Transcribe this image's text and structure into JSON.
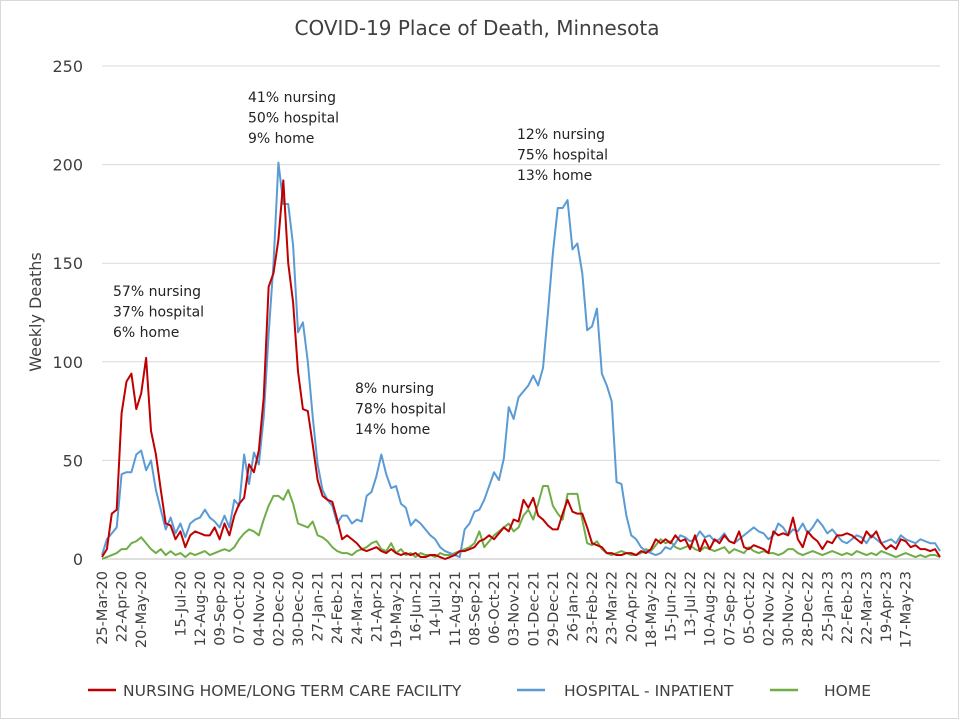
{
  "chart_data": {
    "type": "line",
    "title": "COVID-19 Place of Death, Minnesota",
    "xlabel": "",
    "ylabel": "Weekly Deaths",
    "ylim": [
      0,
      250
    ],
    "yticks": [
      0,
      50,
      100,
      150,
      200,
      250
    ],
    "grid": "horizontal",
    "legend_position": "bottom",
    "x_tick_labels": [
      "25-Mar-20",
      "22-Apr-20",
      "20-May-20",
      "15-Jul-20",
      "12-Aug-20",
      "09-Sep-20",
      "07-Oct-20",
      "04-Nov-20",
      "02-Dec-20",
      "30-Dec-20",
      "27-Jan-21",
      "24-Feb-21",
      "24-Mar-21",
      "21-Apr-21",
      "19-May-21",
      "16-Jun-21",
      "14-Jul-21",
      "11-Aug-21",
      "08-Sep-21",
      "06-Oct-21",
      "03-Nov-21",
      "01-Dec-21",
      "29-Dec-21",
      "26-Jan-22",
      "23-Feb-22",
      "23-Mar-22",
      "20-Apr-22",
      "18-May-22",
      "15-Jun-22",
      "13-Jul-22",
      "10-Aug-22",
      "07-Sep-22",
      "05-Oct-22",
      "02-Nov-22",
      "30-Nov-22",
      "28-Dec-22",
      "25-Jan-23",
      "22-Feb-23",
      "22-Mar-23",
      "19-Apr-23",
      "17-May-23"
    ],
    "x_tick_weeks": [
      0,
      4,
      8,
      16,
      20,
      24,
      28,
      32,
      36,
      40,
      44,
      48,
      52,
      56,
      60,
      64,
      68,
      72,
      76,
      80,
      84,
      88,
      92,
      96,
      100,
      104,
      108,
      112,
      116,
      120,
      124,
      128,
      132,
      136,
      140,
      144,
      148,
      152,
      156,
      160,
      164
    ],
    "series": [
      {
        "name": "NURSING HOME/LONG TERM CARE FACILITY",
        "color": "#c00000",
        "values": [
          1,
          5,
          23,
          25,
          74,
          90,
          94,
          76,
          84,
          102,
          65,
          53,
          35,
          18,
          17,
          10,
          14,
          6,
          12,
          14,
          13,
          12,
          12,
          16,
          10,
          18,
          12,
          22,
          28,
          31,
          48,
          44,
          55,
          82,
          138,
          145,
          162,
          192,
          150,
          130,
          95,
          76,
          75,
          58,
          40,
          32,
          30,
          29,
          20,
          10,
          12,
          10,
          8,
          5,
          4,
          5,
          6,
          4,
          3,
          5,
          3,
          2,
          3,
          2,
          3,
          1,
          1,
          2,
          2,
          1,
          0,
          1,
          2,
          4,
          4,
          5,
          6,
          9,
          10,
          12,
          10,
          13,
          16,
          14,
          20,
          19,
          30,
          26,
          31,
          22,
          20,
          17,
          15,
          15,
          23,
          30,
          24,
          23,
          23,
          16,
          8,
          7,
          6,
          3,
          3,
          2,
          2,
          3,
          3,
          2,
          4,
          3,
          5,
          10,
          8,
          10,
          8,
          12,
          9,
          10,
          5,
          12,
          4,
          10,
          5,
          10,
          8,
          12,
          9,
          8,
          14,
          6,
          5,
          7,
          6,
          5,
          3,
          14,
          12,
          13,
          12,
          21,
          10,
          6,
          14,
          11,
          9,
          5,
          9,
          8,
          12,
          12,
          13,
          12,
          10,
          8,
          14,
          11,
          14,
          8,
          5,
          7,
          5,
          10,
          9,
          6,
          7,
          5,
          5,
          4,
          5,
          1
        ]
      },
      {
        "name": "HOSPITAL - INPATIENT",
        "color": "#5b9bd5",
        "values": [
          2,
          10,
          13,
          16,
          43,
          44,
          44,
          53,
          55,
          45,
          50,
          35,
          25,
          15,
          21,
          13,
          18,
          11,
          18,
          20,
          21,
          25,
          21,
          19,
          16,
          22,
          16,
          30,
          27,
          53,
          38,
          54,
          48,
          72,
          114,
          150,
          201,
          180,
          180,
          159,
          115,
          120,
          100,
          72,
          48,
          35,
          30,
          27,
          18,
          22,
          22,
          18,
          20,
          19,
          32,
          34,
          42,
          53,
          43,
          36,
          37,
          28,
          26,
          17,
          20,
          18,
          15,
          12,
          10,
          6,
          4,
          3,
          2,
          1,
          15,
          18,
          24,
          25,
          30,
          37,
          44,
          40,
          51,
          77,
          71,
          82,
          85,
          88,
          93,
          88,
          97,
          125,
          155,
          178,
          178,
          182,
          157,
          160,
          145,
          116,
          118,
          127,
          94,
          88,
          80,
          39,
          38,
          22,
          12,
          10,
          6,
          4,
          3,
          2,
          3,
          6,
          5,
          8,
          12,
          11,
          9,
          10,
          14,
          11,
          12,
          9,
          10,
          13,
          9,
          8,
          10,
          12,
          14,
          16,
          14,
          13,
          10,
          12,
          18,
          16,
          12,
          15,
          14,
          18,
          13,
          16,
          20,
          17,
          13,
          15,
          12,
          9,
          8,
          10,
          12,
          11,
          8,
          12,
          10,
          8,
          9,
          10,
          8,
          12,
          10,
          9,
          8,
          10,
          9,
          8,
          8,
          4
        ]
      },
      {
        "name": "HOME",
        "color": "#70ad47",
        "values": [
          0,
          1,
          2,
          3,
          5,
          5,
          8,
          9,
          11,
          8,
          5,
          3,
          5,
          2,
          4,
          2,
          3,
          1,
          3,
          2,
          3,
          4,
          2,
          3,
          4,
          5,
          4,
          6,
          10,
          13,
          15,
          14,
          12,
          20,
          27,
          32,
          32,
          30,
          35,
          28,
          18,
          17,
          16,
          19,
          12,
          11,
          9,
          6,
          4,
          3,
          3,
          2,
          4,
          5,
          6,
          8,
          9,
          5,
          4,
          8,
          3,
          5,
          2,
          3,
          1,
          3,
          2,
          2,
          1,
          3,
          2,
          2,
          3,
          4,
          5,
          6,
          8,
          14,
          6,
          9,
          12,
          14,
          16,
          18,
          14,
          16,
          22,
          25,
          20,
          28,
          37,
          37,
          27,
          23,
          20,
          33,
          33,
          33,
          20,
          8,
          7,
          9,
          5,
          3,
          2,
          3,
          4,
          3,
          2,
          2,
          3,
          5,
          4,
          7,
          10,
          8,
          9,
          6,
          5,
          6,
          7,
          5,
          4,
          6,
          5,
          4,
          5,
          6,
          3,
          5,
          4,
          3,
          6,
          4,
          3,
          4,
          3,
          3,
          2,
          3,
          5,
          5,
          3,
          2,
          3,
          4,
          3,
          2,
          3,
          4,
          3,
          2,
          3,
          2,
          4,
          3,
          2,
          3,
          2,
          4,
          3,
          2,
          1,
          2,
          3,
          2,
          1,
          2,
          1,
          2,
          2,
          1
        ]
      }
    ],
    "annotations": [
      {
        "lines": [
          "57% nursing",
          "37% hospital",
          "6% home"
        ],
        "week": 0
      },
      {
        "lines": [
          "41% nursing",
          "50% hospital",
          "9% home"
        ],
        "week": 0
      },
      {
        "lines": [
          "8% nursing",
          "78% hospital",
          "14% home"
        ],
        "week": 0
      },
      {
        "lines": [
          "12% nursing",
          "75% hospital",
          "13% home"
        ],
        "week": 0
      }
    ]
  },
  "legend": [
    {
      "label": "NURSING HOME/LONG TERM CARE FACILITY",
      "color": "#c00000"
    },
    {
      "label": "HOSPITAL - INPATIENT",
      "color": "#5b9bd5"
    },
    {
      "label": "HOME",
      "color": "#70ad47"
    }
  ]
}
